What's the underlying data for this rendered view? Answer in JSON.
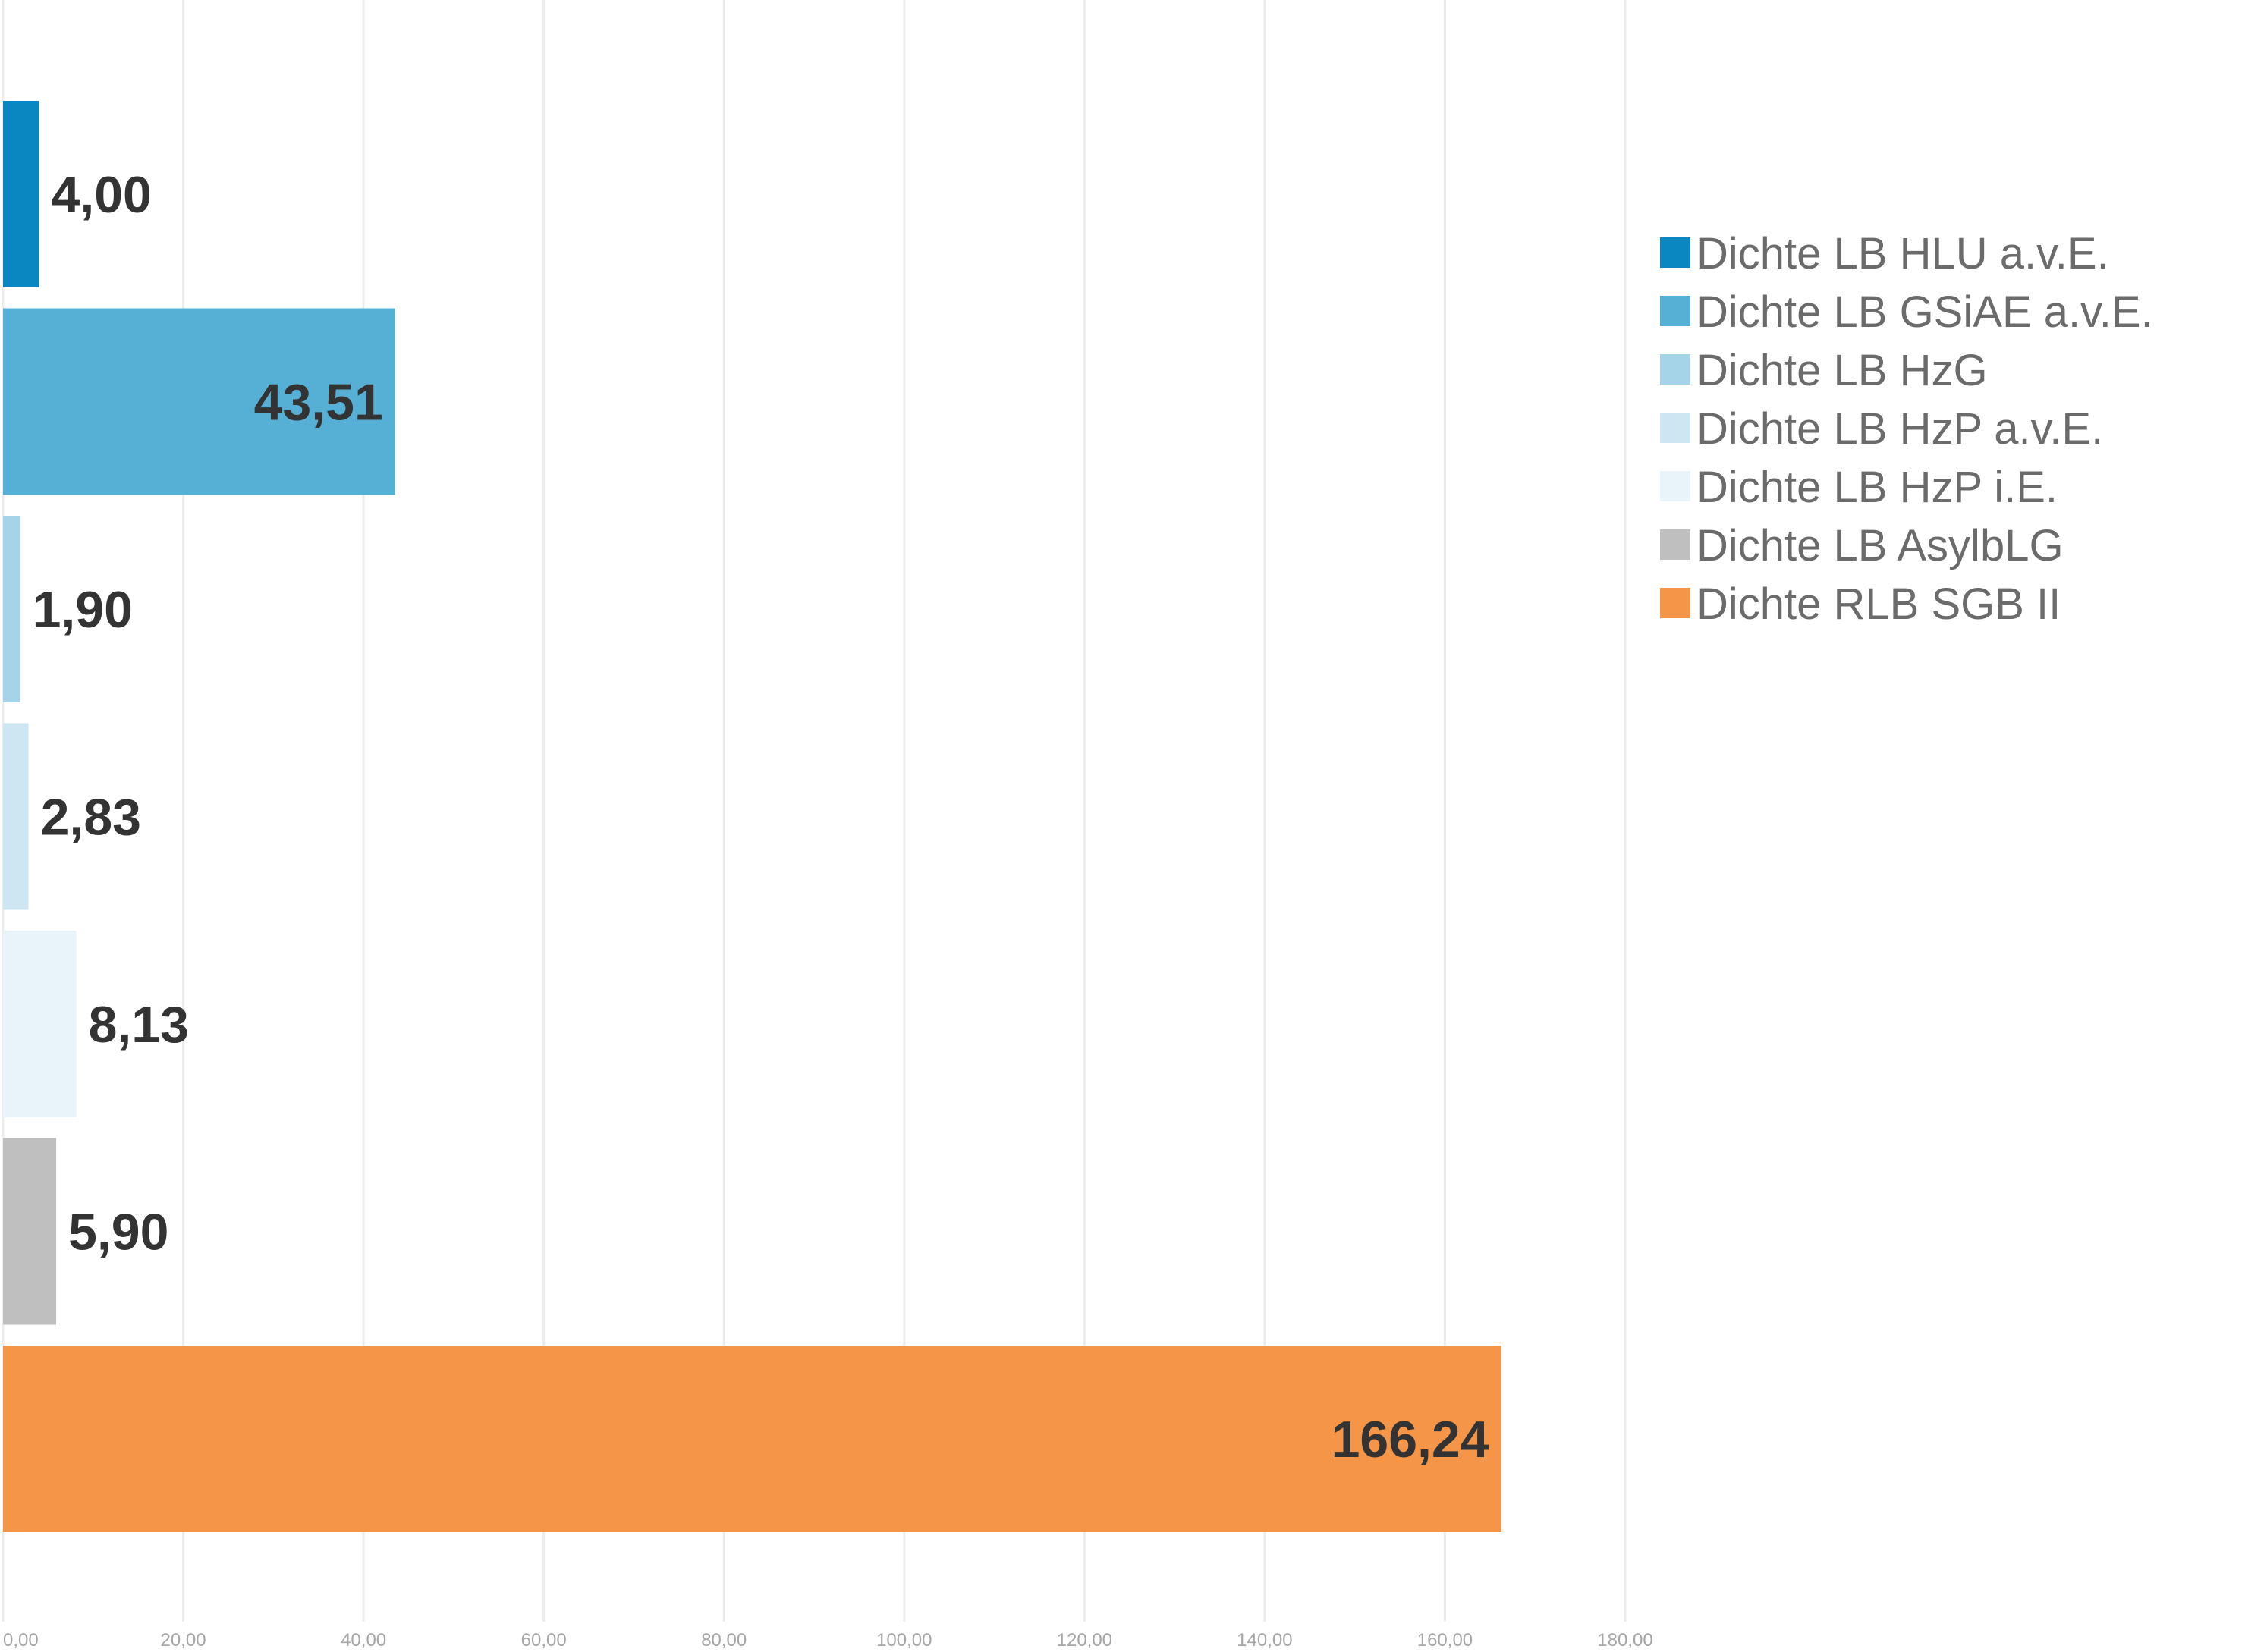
{
  "chart_data": {
    "type": "bar",
    "orientation": "horizontal",
    "categories": [
      "Dichte LB HLU a.v.E.",
      "Dichte LB GSiAE a.v.E.",
      "Dichte LB HzG",
      "Dichte LB HzP a.v.E.",
      "Dichte LB HzP i.E.",
      "Dichte LB AsylbLG",
      "Dichte RLB SGB II"
    ],
    "values": [
      4.0,
      43.51,
      1.9,
      2.83,
      8.13,
      5.9,
      166.24
    ],
    "data_labels": [
      "4,00",
      "43,51",
      "1,90",
      "2,83",
      "8,13",
      "5,90",
      "166,24"
    ],
    "label_position": [
      "outside",
      "inside",
      "outside",
      "outside",
      "outside",
      "outside",
      "inside"
    ],
    "colors": [
      "#0a86c1",
      "#56b0d6",
      "#a5d3e8",
      "#cee5f2",
      "#e8f3fa",
      "#bfbfbf",
      "#f59547"
    ],
    "series": [
      {
        "name": "Dichte LB HLU a.v.E.",
        "value": 4.0,
        "color": "#0a86c1"
      },
      {
        "name": "Dichte LB GSiAE a.v.E.",
        "value": 43.51,
        "color": "#56b0d6"
      },
      {
        "name": "Dichte LB HzG",
        "value": 1.9,
        "color": "#a5d3e8"
      },
      {
        "name": "Dichte LB HzP a.v.E.",
        "value": 2.83,
        "color": "#cee5f2"
      },
      {
        "name": "Dichte LB HzP i.E.",
        "value": 8.13,
        "color": "#e8f3fa"
      },
      {
        "name": "Dichte LB AsylbLG",
        "value": 5.9,
        "color": "#bfbfbf"
      },
      {
        "name": "Dichte RLB SGB II",
        "value": 166.24,
        "color": "#f59547"
      }
    ],
    "xlim": [
      0,
      180
    ],
    "x_ticks": [
      0,
      20,
      40,
      60,
      80,
      100,
      120,
      140,
      160,
      180
    ],
    "x_tick_labels": [
      "0,00",
      "20,00",
      "40,00",
      "60,00",
      "80,00",
      "100,00",
      "120,00",
      "140,00",
      "160,00",
      "180,00"
    ],
    "title": "",
    "xlabel": "",
    "ylabel": "",
    "grid": true,
    "legend_position": "right"
  }
}
